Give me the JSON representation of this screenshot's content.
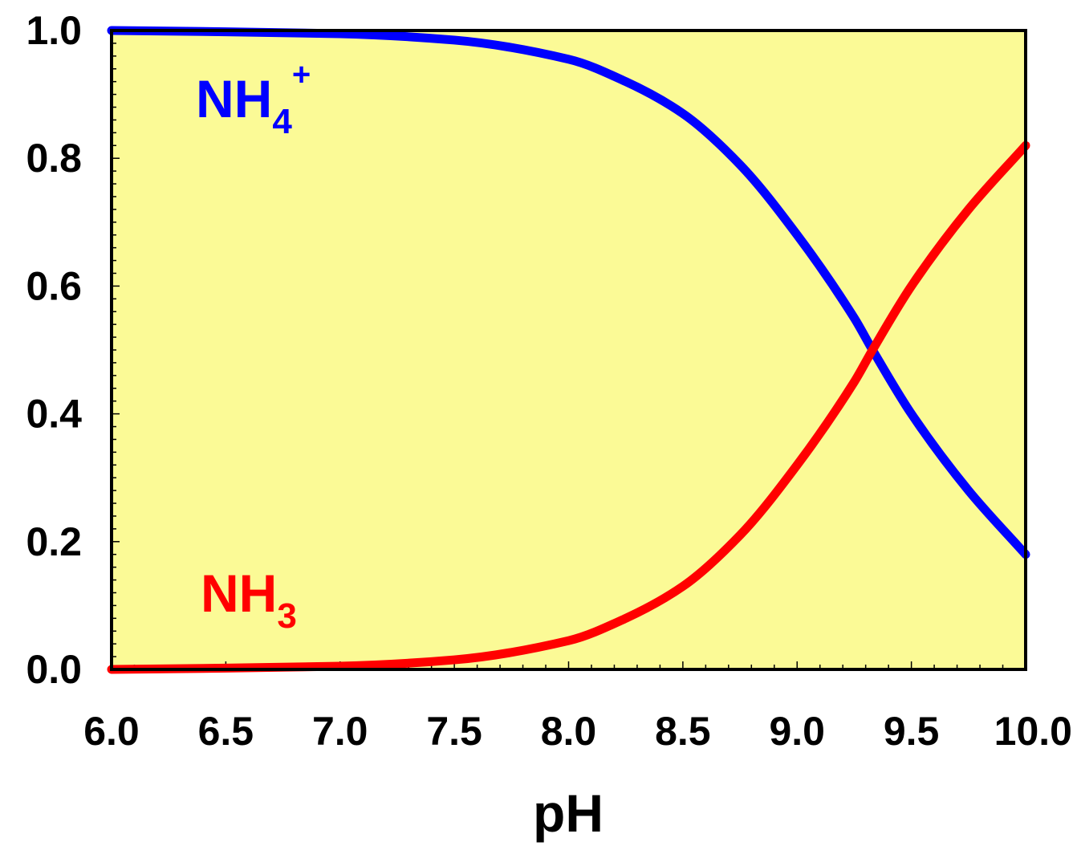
{
  "chart_data": {
    "type": "line",
    "title": "",
    "xlabel": "pH",
    "ylabel": "",
    "xlim": [
      6.0,
      10.0
    ],
    "ylim": [
      0.0,
      1.0
    ],
    "grid": false,
    "x_ticks": [
      "6.0",
      "6.5",
      "7.0",
      "7.5",
      "8.0",
      "8.5",
      "9.0",
      "9.5",
      "10.0"
    ],
    "y_ticks": [
      "0.0",
      "0.2",
      "0.4",
      "0.6",
      "0.8",
      "1.0"
    ],
    "x": [
      6.0,
      6.5,
      7.0,
      7.5,
      8.0,
      8.25,
      8.5,
      8.75,
      9.0,
      9.25,
      9.33,
      9.5,
      9.75,
      10.0
    ],
    "series": [
      {
        "name": "NH4+",
        "color": "#0000ff",
        "label": {
          "base": "NH",
          "sub": "4",
          "sup": "+"
        },
        "values": [
          1.0,
          0.998,
          0.995,
          0.985,
          0.955,
          0.92,
          0.87,
          0.79,
          0.68,
          0.55,
          0.5,
          0.4,
          0.28,
          0.18
        ]
      },
      {
        "name": "NH3",
        "color": "#ff0000",
        "label": {
          "base": "NH",
          "sub": "3",
          "sup": ""
        },
        "values": [
          0.0,
          0.002,
          0.005,
          0.015,
          0.045,
          0.08,
          0.13,
          0.21,
          0.32,
          0.45,
          0.5,
          0.6,
          0.72,
          0.82
        ]
      }
    ],
    "plot_background": "#fbfa96"
  }
}
